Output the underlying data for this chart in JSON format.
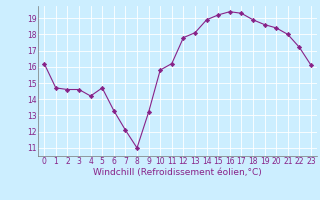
{
  "x": [
    0,
    1,
    2,
    3,
    4,
    5,
    6,
    7,
    8,
    9,
    10,
    11,
    12,
    13,
    14,
    15,
    16,
    17,
    18,
    19,
    20,
    21,
    22,
    23
  ],
  "y": [
    16.2,
    14.7,
    14.6,
    14.6,
    14.2,
    14.7,
    13.3,
    12.1,
    11.0,
    13.2,
    15.8,
    16.2,
    17.8,
    18.1,
    18.9,
    19.2,
    19.4,
    19.3,
    18.9,
    18.6,
    18.4,
    18.0,
    17.2,
    16.1
  ],
  "line_color": "#882288",
  "marker": "D",
  "marker_size": 2.2,
  "bg_color": "#cceeff",
  "grid_color": "#ffffff",
  "xlabel": "Windchill (Refroidissement éolien,°C)",
  "xlabel_color": "#882288",
  "tick_color": "#882288",
  "ylim": [
    10.5,
    19.75
  ],
  "xlim": [
    -0.5,
    23.5
  ],
  "yticks": [
    11,
    12,
    13,
    14,
    15,
    16,
    17,
    18,
    19
  ],
  "xticks": [
    0,
    1,
    2,
    3,
    4,
    5,
    6,
    7,
    8,
    9,
    10,
    11,
    12,
    13,
    14,
    15,
    16,
    17,
    18,
    19,
    20,
    21,
    22,
    23
  ],
  "tick_fontsize": 5.5,
  "xlabel_fontsize": 6.5
}
